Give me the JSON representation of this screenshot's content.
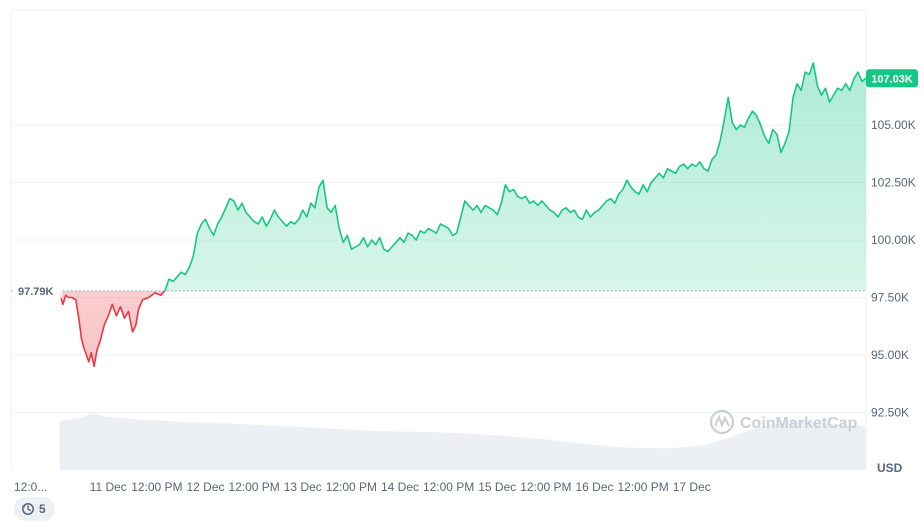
{
  "chart_data": {
    "type": "line",
    "unit_label": "USD",
    "watermark": "CoinMarketCap",
    "y_ticks": [
      92500,
      95000,
      97500,
      100000,
      102500,
      105000
    ],
    "y_tick_labels": [
      "92.50K",
      "95.00K",
      "97.50K",
      "100.00K",
      "102.50K",
      "105.00K"
    ],
    "ylim": [
      90000,
      110000
    ],
    "x_tick_labels": [
      "12:0...",
      "11 Dec",
      "12:00 PM",
      "12 Dec",
      "12:00 PM",
      "13 Dec",
      "12:00 PM",
      "14 Dec",
      "12:00 PM",
      "15 Dec",
      "12:00 PM",
      "16 Dec",
      "12:00 PM",
      "17 Dec"
    ],
    "x_tick_hours": [
      0,
      12,
      24,
      36,
      48,
      60,
      72,
      84,
      96,
      108,
      120,
      132,
      144,
      156
    ],
    "xlim_hours": [
      -12,
      199
    ],
    "open_value": 97790,
    "open_label": "97.79K",
    "last_value": 107030,
    "last_label": "107.03K",
    "colors": {
      "up": "#16c784",
      "down": "#ea3943",
      "volume": "#eceff3",
      "grid": "#eff2f5"
    },
    "price_series": {
      "name": "",
      "points": [
        [
          0,
          97700
        ],
        [
          0.8,
          97200
        ],
        [
          1.5,
          97600
        ],
        [
          2.2,
          97500
        ],
        [
          3,
          97500
        ],
        [
          4,
          97400
        ],
        [
          4.8,
          96500
        ],
        [
          5.4,
          95700
        ],
        [
          6,
          95300
        ],
        [
          6.6,
          95000
        ],
        [
          7.2,
          94700
        ],
        [
          7.8,
          95100
        ],
        [
          8.5,
          94500
        ],
        [
          9.2,
          95200
        ],
        [
          10,
          95600
        ],
        [
          11,
          96300
        ],
        [
          12,
          96700
        ],
        [
          13,
          97200
        ],
        [
          14,
          96700
        ],
        [
          15,
          97100
        ],
        [
          16,
          96600
        ],
        [
          17,
          96900
        ],
        [
          18,
          96000
        ],
        [
          18.8,
          96300
        ],
        [
          19.5,
          97000
        ],
        [
          20.5,
          97400
        ],
        [
          22,
          97500
        ],
        [
          23.5,
          97700
        ],
        [
          25,
          97600
        ],
        [
          26,
          97800
        ],
        [
          27,
          98300
        ],
        [
          28,
          98200
        ],
        [
          29,
          98400
        ],
        [
          30,
          98600
        ],
        [
          31,
          98500
        ],
        [
          32,
          98800
        ],
        [
          33,
          99300
        ],
        [
          34,
          100300
        ],
        [
          35,
          100700
        ],
        [
          36,
          100900
        ],
        [
          37,
          100500
        ],
        [
          38,
          100200
        ],
        [
          39,
          100700
        ],
        [
          40,
          101000
        ],
        [
          41,
          101400
        ],
        [
          42,
          101800
        ],
        [
          43,
          101700
        ],
        [
          44,
          101300
        ],
        [
          45,
          101600
        ],
        [
          46,
          101200
        ],
        [
          47,
          101000
        ],
        [
          48,
          100800
        ],
        [
          49,
          100700
        ],
        [
          50,
          101000
        ],
        [
          51,
          100600
        ],
        [
          52,
          100900
        ],
        [
          53,
          101300
        ],
        [
          54,
          101000
        ],
        [
          55,
          100800
        ],
        [
          56,
          100600
        ],
        [
          57,
          100800
        ],
        [
          58,
          100700
        ],
        [
          59,
          100900
        ],
        [
          60,
          101300
        ],
        [
          61,
          101000
        ],
        [
          62,
          101600
        ],
        [
          63,
          101400
        ],
        [
          64,
          102300
        ],
        [
          65,
          102600
        ],
        [
          66,
          101400
        ],
        [
          67,
          101200
        ],
        [
          68,
          101500
        ],
        [
          69,
          100500
        ],
        [
          70,
          99900
        ],
        [
          71,
          100200
        ],
        [
          72,
          99600
        ],
        [
          73,
          99700
        ],
        [
          74,
          99800
        ],
        [
          75,
          100100
        ],
        [
          76,
          99700
        ],
        [
          77,
          100000
        ],
        [
          78,
          99800
        ],
        [
          79,
          100100
        ],
        [
          80,
          99600
        ],
        [
          81,
          99500
        ],
        [
          82,
          99700
        ],
        [
          83,
          99900
        ],
        [
          84,
          100100
        ],
        [
          85,
          99900
        ],
        [
          86,
          100300
        ],
        [
          87,
          100200
        ],
        [
          88,
          100000
        ],
        [
          89,
          100400
        ],
        [
          90,
          100300
        ],
        [
          91,
          100500
        ],
        [
          92,
          100400
        ],
        [
          93,
          100300
        ],
        [
          94,
          100700
        ],
        [
          95,
          100600
        ],
        [
          96,
          100500
        ],
        [
          97,
          100200
        ],
        [
          98,
          100300
        ],
        [
          99,
          101000
        ],
        [
          100,
          101700
        ],
        [
          101,
          101500
        ],
        [
          102,
          101300
        ],
        [
          103,
          101500
        ],
        [
          104,
          101200
        ],
        [
          105,
          101500
        ],
        [
          106,
          101400
        ],
        [
          107,
          101300
        ],
        [
          108,
          101100
        ],
        [
          109,
          101600
        ],
        [
          110,
          102400
        ],
        [
          111,
          102100
        ],
        [
          112,
          102200
        ],
        [
          113,
          101900
        ],
        [
          114,
          101800
        ],
        [
          115,
          101900
        ],
        [
          116,
          101600
        ],
        [
          117,
          101700
        ],
        [
          118,
          101500
        ],
        [
          119,
          101700
        ],
        [
          120,
          101500
        ],
        [
          121,
          101300
        ],
        [
          122,
          101200
        ],
        [
          123,
          101000
        ],
        [
          124,
          101300
        ],
        [
          125,
          101400
        ],
        [
          126,
          101200
        ],
        [
          127,
          101300
        ],
        [
          128,
          101000
        ],
        [
          129,
          100900
        ],
        [
          130,
          101300
        ],
        [
          131,
          101000
        ],
        [
          132,
          101200
        ],
        [
          133,
          101300
        ],
        [
          134,
          101500
        ],
        [
          135,
          101700
        ],
        [
          136,
          101800
        ],
        [
          137,
          101600
        ],
        [
          138,
          102000
        ],
        [
          139,
          102200
        ],
        [
          140,
          102600
        ],
        [
          141,
          102300
        ],
        [
          142,
          102100
        ],
        [
          143,
          102000
        ],
        [
          144,
          102400
        ],
        [
          145,
          102100
        ],
        [
          146,
          102500
        ],
        [
          147,
          102700
        ],
        [
          148,
          102900
        ],
        [
          149,
          102700
        ],
        [
          150,
          103100
        ],
        [
          151,
          103000
        ],
        [
          152,
          102900
        ],
        [
          153,
          103200
        ],
        [
          154,
          103300
        ],
        [
          155,
          103100
        ],
        [
          156,
          103300
        ],
        [
          157,
          103200
        ],
        [
          158,
          103400
        ],
        [
          159,
          103100
        ],
        [
          160,
          103000
        ],
        [
          161,
          103500
        ],
        [
          162,
          103700
        ],
        [
          163,
          104300
        ],
        [
          164,
          105200
        ],
        [
          165,
          106200
        ],
        [
          166,
          105100
        ],
        [
          167,
          104800
        ],
        [
          168,
          105000
        ],
        [
          169,
          104900
        ],
        [
          170,
          105300
        ],
        [
          171,
          105600
        ],
        [
          172,
          105400
        ],
        [
          173,
          105000
        ],
        [
          174,
          104500
        ],
        [
          175,
          104200
        ],
        [
          176,
          104800
        ],
        [
          177,
          104600
        ],
        [
          178,
          103800
        ],
        [
          179,
          104200
        ],
        [
          180,
          104700
        ],
        [
          181,
          106200
        ],
        [
          182,
          106800
        ],
        [
          183,
          106500
        ],
        [
          184,
          107300
        ],
        [
          185,
          107200
        ],
        [
          186,
          107700
        ],
        [
          187,
          106700
        ],
        [
          188,
          106300
        ],
        [
          189,
          106600
        ],
        [
          190,
          106000
        ],
        [
          191,
          106300
        ],
        [
          192,
          106600
        ],
        [
          193,
          106500
        ],
        [
          194,
          106800
        ],
        [
          195,
          106500
        ],
        [
          196,
          107000
        ],
        [
          197,
          107300
        ],
        [
          198,
          106900
        ],
        [
          199,
          107030
        ]
      ]
    },
    "volume_series": {
      "name": "",
      "points": [
        [
          0,
          0.72
        ],
        [
          5,
          0.76
        ],
        [
          8,
          0.83
        ],
        [
          12,
          0.78
        ],
        [
          20,
          0.74
        ],
        [
          30,
          0.71
        ],
        [
          40,
          0.69
        ],
        [
          50,
          0.66
        ],
        [
          60,
          0.63
        ],
        [
          70,
          0.6
        ],
        [
          80,
          0.57
        ],
        [
          90,
          0.56
        ],
        [
          100,
          0.54
        ],
        [
          110,
          0.5
        ],
        [
          120,
          0.45
        ],
        [
          130,
          0.38
        ],
        [
          140,
          0.33
        ],
        [
          150,
          0.32
        ],
        [
          155,
          0.34
        ],
        [
          160,
          0.38
        ],
        [
          165,
          0.47
        ],
        [
          170,
          0.58
        ],
        [
          175,
          0.66
        ],
        [
          180,
          0.71
        ],
        [
          185,
          0.71
        ],
        [
          190,
          0.68
        ],
        [
          199,
          0.64
        ]
      ]
    }
  },
  "controls": {
    "history_count": "5"
  }
}
